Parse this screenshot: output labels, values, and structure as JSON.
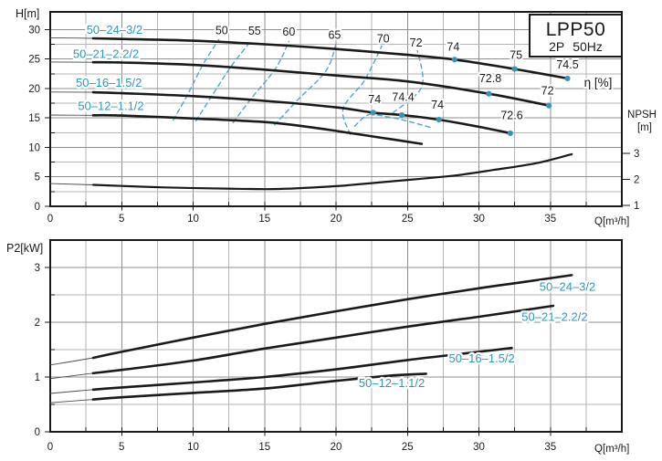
{
  "colors": {
    "ink": "#1a1a1a",
    "frame": "#1a1a1a",
    "grid_major": "#8f8f8f",
    "grid_minor": "#b5b5b5",
    "accent_text": "#2f97b8",
    "dashed_contour": "#4fa9c4",
    "duty_dot": "#3597b8",
    "thin_curve": "#4a4a4a",
    "background": "#ffffff"
  },
  "title_box": {
    "model": "LPP50",
    "subtitle_poles": "2P",
    "subtitle_freq": "50Hz"
  },
  "chart_data": [
    {
      "id": "head_capacity",
      "type": "line",
      "xlabel": "Q[m³/h]",
      "ylabel": "H[m]",
      "eta_axis_label": "η [%]",
      "npsh_label_line1": "NPSH",
      "npsh_label_line2": "[m]",
      "xlim": [
        0,
        40
      ],
      "ylim": [
        0,
        33
      ],
      "npsh_lim": [
        1,
        3
      ],
      "x_ticks": [
        0,
        5,
        10,
        15,
        20,
        25,
        30,
        35
      ],
      "y_ticks": [
        0,
        5,
        10,
        15,
        20,
        25,
        30
      ],
      "npsh_ticks": [
        3,
        2,
        1
      ],
      "grid": "on",
      "series": [
        {
          "name": "50–24–3/2",
          "points": [
            [
              0,
              28.6
            ],
            [
              3,
              28.5
            ],
            [
              5,
              28.4
            ],
            [
              10,
              28.1
            ],
            [
              15,
              27.5
            ],
            [
              20,
              26.7
            ],
            [
              25,
              25.7
            ],
            [
              28.3,
              24.9
            ],
            [
              32.5,
              23.3
            ],
            [
              36.2,
              21.7
            ]
          ],
          "label_at": [
            4.5,
            29.9
          ],
          "duty_points": [
            {
              "q": 28.3,
              "h": 24.9,
              "eta": "74",
              "label_at": [
                28.2,
                26.4
              ]
            },
            {
              "q": 32.5,
              "h": 23.3,
              "eta": "75",
              "label_at": [
                32.6,
                25.0
              ]
            },
            {
              "q": 36.2,
              "h": 21.7,
              "eta": "74.5",
              "label_at": [
                36.2,
                23.4
              ]
            }
          ]
        },
        {
          "name": "50–21–2.2/2",
          "points": [
            [
              0,
              24.5
            ],
            [
              3,
              24.45
            ],
            [
              5,
              24.4
            ],
            [
              10,
              24.0
            ],
            [
              15,
              23.2
            ],
            [
              20,
              22.2
            ],
            [
              25,
              21.2
            ],
            [
              30.7,
              19.1
            ],
            [
              34.9,
              17.1
            ]
          ],
          "label_at": [
            3.9,
            25.8
          ],
          "duty_points": [
            {
              "q": 30.7,
              "h": 19.1,
              "eta": "72.8",
              "label_at": [
                30.8,
                21.1
              ]
            },
            {
              "q": 34.9,
              "h": 17.1,
              "eta": "72",
              "label_at": [
                34.8,
                19.0
              ]
            }
          ]
        },
        {
          "name": "50–16–1.5/2",
          "points": [
            [
              0,
              19.4
            ],
            [
              3,
              19.35
            ],
            [
              5,
              19.2
            ],
            [
              10,
              18.7
            ],
            [
              15,
              17.9
            ],
            [
              20,
              16.8
            ],
            [
              22.6,
              15.9
            ],
            [
              24.6,
              15.5
            ],
            [
              27.2,
              14.7
            ],
            [
              30,
              13.5
            ],
            [
              32.2,
              12.4
            ]
          ],
          "label_at": [
            4.1,
            20.9
          ],
          "duty_points": [
            {
              "q": 22.6,
              "h": 15.9,
              "eta": "74",
              "label_at": [
                22.7,
                17.5
              ]
            },
            {
              "q": 24.6,
              "h": 15.5,
              "eta": "74.4",
              "label_at": [
                24.7,
                17.9
              ]
            },
            {
              "q": 27.2,
              "h": 14.7,
              "eta": "74",
              "label_at": [
                27.1,
                16.6
              ]
            },
            {
              "q": 32.2,
              "h": 12.4,
              "eta": "72.6",
              "label_at": [
                32.3,
                14.8
              ]
            }
          ]
        },
        {
          "name": "50–12–1.1/2",
          "points": [
            [
              0,
              15.5
            ],
            [
              3,
              15.45
            ],
            [
              5,
              15.4
            ],
            [
              10,
              14.9
            ],
            [
              15,
              14.3
            ],
            [
              18,
              13.5
            ],
            [
              20,
              12.8
            ],
            [
              23,
              11.7
            ],
            [
              26,
              10.6
            ]
          ],
          "label_at": [
            4.25,
            17.0
          ],
          "duty_points": []
        }
      ],
      "npsh_series": {
        "name": "NPSH",
        "points": [
          [
            0,
            1.84
          ],
          [
            3,
            1.79
          ],
          [
            8,
            1.69
          ],
          [
            13,
            1.64
          ],
          [
            16,
            1.63
          ],
          [
            20,
            1.74
          ],
          [
            24,
            1.93
          ],
          [
            28,
            2.13
          ],
          [
            31,
            2.36
          ],
          [
            34,
            2.62
          ],
          [
            36.5,
            2.97
          ]
        ]
      },
      "efficiency_contours": [
        {
          "value": "50",
          "points": [
            [
              8.6,
              14.6
            ],
            [
              9.6,
              18.9
            ],
            [
              10.7,
              24.1
            ],
            [
              11.8,
              28.3
            ]
          ],
          "label_at": [
            12.0,
            29.2
          ]
        },
        {
          "value": "55",
          "points": [
            [
              10.2,
              14.5
            ],
            [
              11.3,
              18.7
            ],
            [
              12.7,
              23.9
            ],
            [
              14.1,
              28.2
            ]
          ],
          "label_at": [
            14.3,
            29.1
          ]
        },
        {
          "value": "60",
          "points": [
            [
              12.8,
              14.2
            ],
            [
              14.1,
              18.4
            ],
            [
              15.8,
              23.5
            ],
            [
              16.7,
              28.0
            ]
          ],
          "label_at": [
            16.7,
            29.0
          ]
        },
        {
          "value": "65",
          "points": [
            [
              15.7,
              13.8
            ],
            [
              17.3,
              18.0
            ],
            [
              19.3,
              23.0
            ],
            [
              20.0,
              27.6
            ]
          ],
          "label_at": [
            19.9,
            28.4
          ]
        },
        {
          "value": "70",
          "points": [
            [
              21.0,
              12.2
            ],
            [
              20.5,
              16.6
            ],
            [
              22.0,
              21.4
            ],
            [
              23.2,
              27.2
            ]
          ],
          "label_at": [
            23.3,
            27.8
          ]
        },
        {
          "value": "72",
          "points": [
            [
              24.0,
              15.9
            ],
            [
              26.0,
              20.3
            ],
            [
              25.7,
              26.4
            ]
          ],
          "label_at": [
            25.6,
            27.1
          ]
        },
        {
          "value": "",
          "points": [
            [
              21.3,
              13.6
            ],
            [
              22.0,
              15.2
            ],
            [
              22.6,
              15.8
            ]
          ],
          "label_at": null
        },
        {
          "value": "",
          "points": [
            [
              22.9,
              15.5
            ],
            [
              24.6,
              14.7
            ],
            [
              26.6,
              13.4
            ]
          ],
          "label_at": null
        }
      ]
    },
    {
      "id": "power",
      "type": "line",
      "xlabel": "Q[m³/h]",
      "ylabel": "P2[kW]",
      "xlim": [
        0,
        40
      ],
      "ylim": [
        0,
        3.5
      ],
      "x_ticks": [
        0,
        5,
        10,
        15,
        20,
        25,
        30,
        35
      ],
      "y_ticks": [
        0,
        1,
        2,
        3
      ],
      "grid": "on",
      "series": [
        {
          "name": "50–24–3/2",
          "points": [
            [
              0,
              1.22
            ],
            [
              3,
              1.35
            ],
            [
              5,
              1.46
            ],
            [
              10,
              1.72
            ],
            [
              15,
              1.97
            ],
            [
              20,
              2.2
            ],
            [
              25,
              2.42
            ],
            [
              30,
              2.62
            ],
            [
              33,
              2.73
            ],
            [
              36.5,
              2.86
            ]
          ],
          "label_at": [
            36.2,
            2.64
          ]
        },
        {
          "name": "50–21–2.2/2",
          "points": [
            [
              0,
              0.97
            ],
            [
              3,
              1.07
            ],
            [
              5,
              1.13
            ],
            [
              10,
              1.3
            ],
            [
              15,
              1.52
            ],
            [
              20,
              1.72
            ],
            [
              25,
              1.92
            ],
            [
              30,
              2.1
            ],
            [
              35.2,
              2.3
            ]
          ],
          "label_at": [
            35.3,
            2.09
          ]
        },
        {
          "name": "50–16–1.5/2",
          "points": [
            [
              0,
              0.7
            ],
            [
              3,
              0.77
            ],
            [
              5,
              0.81
            ],
            [
              10,
              0.9
            ],
            [
              15,
              1.0
            ],
            [
              20,
              1.14
            ],
            [
              25,
              1.31
            ],
            [
              29,
              1.43
            ],
            [
              32.3,
              1.53
            ]
          ],
          "label_at": [
            30.2,
            1.33
          ]
        },
        {
          "name": "50–12–1.1/2",
          "points": [
            [
              0,
              0.53
            ],
            [
              3,
              0.59
            ],
            [
              5,
              0.63
            ],
            [
              10,
              0.71
            ],
            [
              15,
              0.79
            ],
            [
              20,
              0.93
            ],
            [
              24,
              1.03
            ],
            [
              26.3,
              1.06
            ]
          ],
          "label_at": [
            23.9,
            0.88
          ]
        }
      ]
    }
  ]
}
